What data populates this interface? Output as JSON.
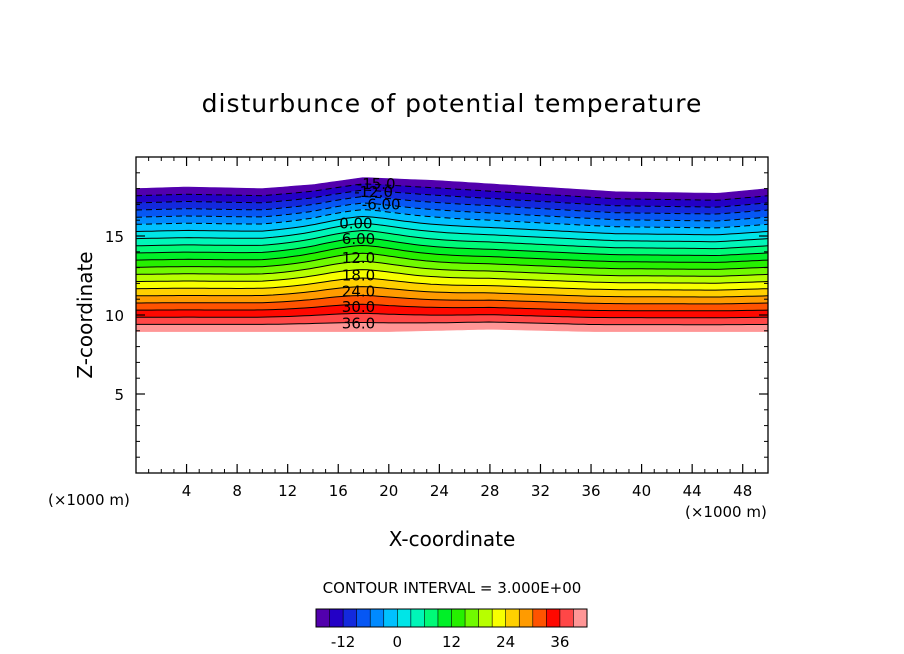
{
  "chart_data": {
    "type": "contour",
    "title": "disturbunce of potential temperature",
    "xlabel": "X-coordinate",
    "ylabel": "Z-coordinate",
    "x_unit": "(×1000 m)",
    "z_unit": "(×1000 m)",
    "xlim": [
      0,
      50
    ],
    "ylim": [
      0,
      20
    ],
    "x_ticks": [
      4,
      8,
      12,
      16,
      20,
      24,
      28,
      32,
      36,
      40,
      44,
      48
    ],
    "y_ticks": [
      5,
      10,
      15
    ],
    "contour_interval_text": "CONTOUR INTERVAL = 3.000E+00",
    "contour_labels": [
      {
        "text": "-15.0",
        "x": 19.0,
        "z": 18.3
      },
      {
        "text": "-12.0",
        "x": 18.8,
        "z": 17.8
      },
      {
        "text": "-6.00",
        "x": 19.4,
        "z": 17.0
      },
      {
        "text": "0.00",
        "x": 17.4,
        "z": 15.8
      },
      {
        "text": "6.00",
        "x": 17.6,
        "z": 14.8
      },
      {
        "text": "12.0",
        "x": 17.6,
        "z": 13.6
      },
      {
        "text": "18.0",
        "x": 17.6,
        "z": 12.5
      },
      {
        "text": "24.0",
        "x": 17.6,
        "z": 11.5
      },
      {
        "text": "30.0",
        "x": 17.6,
        "z": 10.5
      },
      {
        "text": "36.0",
        "x": 17.6,
        "z": 9.45
      }
    ],
    "field": {
      "levels_min": -18,
      "levels_max": 42,
      "bottom_z": [
        [
          0,
          8.95
        ],
        [
          20,
          8.95
        ],
        [
          28,
          9.1
        ],
        [
          36,
          8.95
        ],
        [
          50,
          8.95
        ]
      ],
      "top_z": [
        [
          0,
          18.0
        ],
        [
          4,
          18.1
        ],
        [
          10,
          18.0
        ],
        [
          14,
          18.25
        ],
        [
          18,
          18.7
        ],
        [
          24,
          18.5
        ],
        [
          32,
          18.1
        ],
        [
          38,
          17.8
        ],
        [
          46,
          17.7
        ],
        [
          50,
          18.0
        ]
      ],
      "bump_center_x": 17.5,
      "bump_width": 4.5
    },
    "colorbar": {
      "ticks": [
        -12,
        0,
        12,
        24,
        36
      ],
      "min": -18,
      "max": 42
    }
  }
}
